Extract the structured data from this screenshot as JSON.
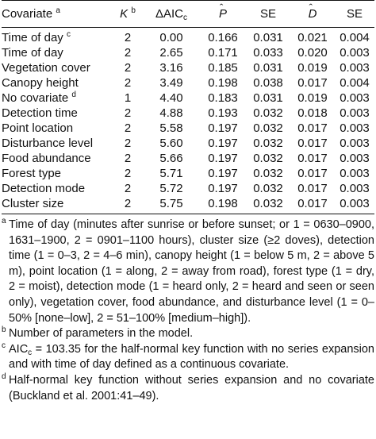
{
  "table": {
    "headers": {
      "covariate": "Covariate",
      "covariate_marker": "a",
      "k": "K",
      "k_marker": "b",
      "delta_aic": "ΔAIC",
      "delta_aic_sub": "c",
      "p_hat": "P",
      "se1": "SE",
      "d_hat": "D",
      "se2": "SE"
    },
    "rows": [
      {
        "covariate": "Time of day",
        "marker": "c",
        "k": "2",
        "daic": "0.00",
        "p": "0.166",
        "se1": "0.031",
        "d": "0.021",
        "se2": "0.004"
      },
      {
        "covariate": "Time of day",
        "marker": "",
        "k": "2",
        "daic": "2.65",
        "p": "0.171",
        "se1": "0.033",
        "d": "0.020",
        "se2": "0.003"
      },
      {
        "covariate": "Vegetation cover",
        "marker": "",
        "k": "2",
        "daic": "3.16",
        "p": "0.185",
        "se1": "0.031",
        "d": "0.019",
        "se2": "0.003"
      },
      {
        "covariate": "Canopy height",
        "marker": "",
        "k": "2",
        "daic": "3.49",
        "p": "0.198",
        "se1": "0.038",
        "d": "0.017",
        "se2": "0.004"
      },
      {
        "covariate": "No covariate",
        "marker": "d",
        "k": "1",
        "daic": "4.40",
        "p": "0.183",
        "se1": "0.031",
        "d": "0.019",
        "se2": "0.003"
      },
      {
        "covariate": "Detection time",
        "marker": "",
        "k": "2",
        "daic": "4.88",
        "p": "0.193",
        "se1": "0.032",
        "d": "0.018",
        "se2": "0.003"
      },
      {
        "covariate": "Point location",
        "marker": "",
        "k": "2",
        "daic": "5.58",
        "p": "0.197",
        "se1": "0.032",
        "d": "0.017",
        "se2": "0.003"
      },
      {
        "covariate": "Disturbance level",
        "marker": "",
        "k": "2",
        "daic": "5.60",
        "p": "0.197",
        "se1": "0.032",
        "d": "0.017",
        "se2": "0.003"
      },
      {
        "covariate": "Food abundance",
        "marker": "",
        "k": "2",
        "daic": "5.66",
        "p": "0.197",
        "se1": "0.032",
        "d": "0.017",
        "se2": "0.003"
      },
      {
        "covariate": "Forest type",
        "marker": "",
        "k": "2",
        "daic": "5.71",
        "p": "0.197",
        "se1": "0.032",
        "d": "0.017",
        "se2": "0.003"
      },
      {
        "covariate": "Detection mode",
        "marker": "",
        "k": "2",
        "daic": "5.72",
        "p": "0.197",
        "se1": "0.032",
        "d": "0.017",
        "se2": "0.003"
      },
      {
        "covariate": "Cluster size",
        "marker": "",
        "k": "2",
        "daic": "5.75",
        "p": "0.198",
        "se1": "0.032",
        "d": "0.017",
        "se2": "0.003"
      }
    ]
  },
  "footnotes": [
    {
      "marker": "a",
      "text": "Time of day (minutes after sunrise or before sunset; or 1 = 0630–0900, 1631–1900, 2 = 0901–1100 hours), cluster size (≥2 doves), detection time (1 = 0–3, 2 = 4–6 min), canopy height (1 = below 5 m, 2 = above 5 m), point location (1 = along, 2 = away from road), forest type (1 = dry, 2 = moist), detection mode (1 = heard only, 2 = heard and seen or seen only), vegetation cover, food abundance, and disturbance level (1 = 0–50% [none–low], 2 = 51–100% [medium–high])."
    },
    {
      "marker": "b",
      "text": "Number of parameters in the model."
    },
    {
      "marker": "c",
      "text_pre": "AIC",
      "text_sub": "c",
      "text": " = 103.35 for the half-normal key function with no series expansion and with time of day defined as a continuous covariate."
    },
    {
      "marker": "d",
      "text": "Half-normal key function without series expansion and no covariate (Buckland et al. 2001:41–49)."
    }
  ]
}
